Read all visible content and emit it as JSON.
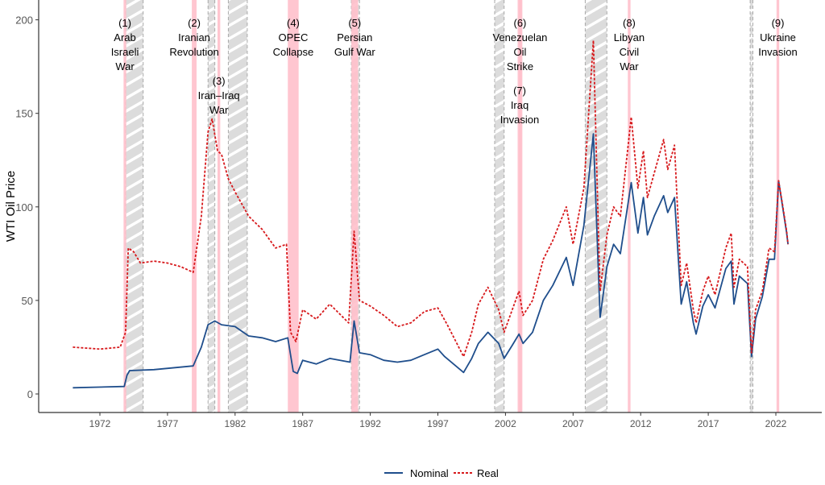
{
  "chart_data": {
    "type": "line",
    "title": "",
    "xlabel": "",
    "ylabel": "WTI Oil Price",
    "xlim": [
      1969.5,
      2025.5
    ],
    "ylim": [
      -10,
      210
    ],
    "x_ticks": [
      "1972",
      "1977",
      "1982",
      "1987",
      "1992",
      "1997",
      "2002",
      "2007",
      "2012",
      "2017",
      "2022"
    ],
    "y_ticks": [
      "0",
      "50",
      "100",
      "150",
      "200"
    ],
    "legend": {
      "placement": "bottom",
      "entries": [
        "Nominal",
        "Real"
      ]
    },
    "colors": {
      "nominal": "#1f4e8c",
      "real": "#d7191c",
      "event": "#ffc0cb",
      "recession": "#dcdcdc"
    },
    "recessions": [
      [
        1973.9,
        1975.2
      ],
      [
        1980.0,
        1980.5
      ],
      [
        1981.5,
        1982.9
      ],
      [
        1990.6,
        1991.2
      ],
      [
        2001.2,
        2001.9
      ],
      [
        2007.9,
        2009.5
      ],
      [
        2020.1,
        2020.3
      ]
    ],
    "events": [
      {
        "range": [
          1973.75,
          1973.95
        ],
        "num": "(1)",
        "label": [
          "Arab",
          "Israeli",
          "War"
        ],
        "row": 0
      },
      {
        "range": [
          1978.8,
          1979.15
        ],
        "num": "(2)",
        "label": [
          "Iranian",
          "Revolution"
        ],
        "row": 0
      },
      {
        "range": [
          1980.7,
          1980.9
        ],
        "num": "(3)",
        "label": [
          "Iran–Iraq",
          "War"
        ],
        "row": 1
      },
      {
        "range": [
          1985.9,
          1986.7
        ],
        "num": "(4)",
        "label": [
          "OPEC",
          "Collapse"
        ],
        "row": 0
      },
      {
        "range": [
          1990.6,
          1991.1
        ],
        "num": "(5)",
        "label": [
          "Persian",
          "Gulf War"
        ],
        "row": 0
      },
      {
        "range": [
          2002.9,
          2003.25
        ],
        "num": "(6)",
        "label": [
          "Venezuelan",
          "Oil",
          "Strike"
        ],
        "row": 0
      },
      {
        "range": [
          2003.0,
          2003.1
        ],
        "num": "(7)",
        "label": [
          "Iraq",
          "Invasion"
        ],
        "row": 2
      },
      {
        "range": [
          2011.05,
          2011.25
        ],
        "num": "(8)",
        "label": [
          "Libyan",
          "Civil",
          "War"
        ],
        "row": 0
      },
      {
        "range": [
          2022.05,
          2022.25
        ],
        "num": "(9)",
        "label": [
          "Ukraine",
          "Invasion"
        ],
        "row": 0
      }
    ],
    "series": [
      {
        "name": "Nominal",
        "points": [
          [
            1970,
            3.3
          ],
          [
            1973.8,
            4
          ],
          [
            1974.0,
            10
          ],
          [
            1974.2,
            12.5
          ],
          [
            1976,
            13
          ],
          [
            1978.9,
            15
          ],
          [
            1979.5,
            25
          ],
          [
            1980,
            37
          ],
          [
            1980.5,
            39
          ],
          [
            1981,
            37
          ],
          [
            1982,
            36
          ],
          [
            1983,
            31
          ],
          [
            1984,
            30
          ],
          [
            1985,
            28
          ],
          [
            1985.9,
            30
          ],
          [
            1986.3,
            12
          ],
          [
            1986.6,
            11
          ],
          [
            1987,
            18
          ],
          [
            1988,
            16
          ],
          [
            1989,
            19
          ],
          [
            1990.5,
            17
          ],
          [
            1990.8,
            39
          ],
          [
            1991.2,
            22
          ],
          [
            1992,
            21
          ],
          [
            1993,
            18
          ],
          [
            1994,
            17
          ],
          [
            1995,
            18
          ],
          [
            1996,
            21
          ],
          [
            1997,
            24
          ],
          [
            1997.5,
            20
          ],
          [
            1998.9,
            11.5
          ],
          [
            1999.5,
            19
          ],
          [
            2000,
            27
          ],
          [
            2000.7,
            33
          ],
          [
            2001.5,
            27
          ],
          [
            2001.9,
            19
          ],
          [
            2002.5,
            26
          ],
          [
            2003,
            32
          ],
          [
            2003.3,
            27
          ],
          [
            2004,
            33
          ],
          [
            2004.8,
            50
          ],
          [
            2005.5,
            58
          ],
          [
            2006.5,
            73
          ],
          [
            2007,
            58
          ],
          [
            2007.8,
            90
          ],
          [
            2008.5,
            139
          ],
          [
            2008.9,
            60
          ],
          [
            2009.0,
            41
          ],
          [
            2009.5,
            68
          ],
          [
            2010,
            80
          ],
          [
            2010.5,
            75
          ],
          [
            2011.3,
            113
          ],
          [
            2011.8,
            86
          ],
          [
            2012.2,
            105
          ],
          [
            2012.5,
            85
          ],
          [
            2013,
            95
          ],
          [
            2013.7,
            106
          ],
          [
            2014,
            97
          ],
          [
            2014.5,
            105
          ],
          [
            2015.0,
            48
          ],
          [
            2015.4,
            60
          ],
          [
            2015.9,
            38
          ],
          [
            2016.1,
            32
          ],
          [
            2016.6,
            47
          ],
          [
            2017,
            53
          ],
          [
            2017.5,
            46
          ],
          [
            2018.3,
            67
          ],
          [
            2018.7,
            71
          ],
          [
            2018.9,
            48
          ],
          [
            2019.3,
            63
          ],
          [
            2019.9,
            59
          ],
          [
            2020.2,
            20
          ],
          [
            2020.5,
            40
          ],
          [
            2021,
            52
          ],
          [
            2021.5,
            72
          ],
          [
            2021.9,
            72
          ],
          [
            2022.2,
            114
          ],
          [
            2022.5,
            100
          ],
          [
            2022.8,
            86
          ],
          [
            2022.9,
            80
          ]
        ]
      },
      {
        "name": "Real",
        "points": [
          [
            1970,
            25
          ],
          [
            1972,
            24
          ],
          [
            1973.5,
            25
          ],
          [
            1973.9,
            33
          ],
          [
            1974.1,
            78
          ],
          [
            1974.5,
            76
          ],
          [
            1975,
            70
          ],
          [
            1976,
            71
          ],
          [
            1977,
            70
          ],
          [
            1978,
            68
          ],
          [
            1978.9,
            65
          ],
          [
            1979.5,
            95
          ],
          [
            1980,
            140
          ],
          [
            1980.3,
            147
          ],
          [
            1980.7,
            130
          ],
          [
            1981,
            128
          ],
          [
            1981.5,
            115
          ],
          [
            1982,
            108
          ],
          [
            1983,
            95
          ],
          [
            1984,
            88
          ],
          [
            1985,
            78
          ],
          [
            1985.8,
            80
          ],
          [
            1986.1,
            33
          ],
          [
            1986.5,
            28
          ],
          [
            1987,
            45
          ],
          [
            1988,
            40
          ],
          [
            1989,
            48
          ],
          [
            1990.4,
            38
          ],
          [
            1990.8,
            87
          ],
          [
            1991.2,
            50
          ],
          [
            1992,
            47
          ],
          [
            1993,
            42
          ],
          [
            1994,
            36
          ],
          [
            1995,
            38
          ],
          [
            1996,
            44
          ],
          [
            1997,
            46
          ],
          [
            1997.7,
            37
          ],
          [
            1998.9,
            20
          ],
          [
            1999.5,
            33
          ],
          [
            2000,
            48
          ],
          [
            2000.7,
            57
          ],
          [
            2001.5,
            45
          ],
          [
            2001.9,
            33
          ],
          [
            2002.5,
            45
          ],
          [
            2003,
            55
          ],
          [
            2003.3,
            42
          ],
          [
            2004,
            50
          ],
          [
            2004.8,
            72
          ],
          [
            2005.5,
            82
          ],
          [
            2006.5,
            100
          ],
          [
            2007,
            80
          ],
          [
            2007.8,
            110
          ],
          [
            2008.5,
            189
          ],
          [
            2008.9,
            80
          ],
          [
            2009.0,
            55
          ],
          [
            2009.5,
            85
          ],
          [
            2010,
            100
          ],
          [
            2010.5,
            95
          ],
          [
            2011.3,
            148
          ],
          [
            2011.8,
            110
          ],
          [
            2012.2,
            130
          ],
          [
            2012.5,
            105
          ],
          [
            2013,
            118
          ],
          [
            2013.7,
            136
          ],
          [
            2014,
            120
          ],
          [
            2014.5,
            133
          ],
          [
            2015.0,
            58
          ],
          [
            2015.4,
            70
          ],
          [
            2015.9,
            45
          ],
          [
            2016.1,
            38
          ],
          [
            2016.6,
            55
          ],
          [
            2017,
            63
          ],
          [
            2017.5,
            53
          ],
          [
            2018.3,
            78
          ],
          [
            2018.7,
            86
          ],
          [
            2018.9,
            57
          ],
          [
            2019.3,
            72
          ],
          [
            2019.9,
            68
          ],
          [
            2020.2,
            22
          ],
          [
            2020.5,
            45
          ],
          [
            2021,
            55
          ],
          [
            2021.5,
            78
          ],
          [
            2021.9,
            76
          ],
          [
            2022.2,
            114
          ],
          [
            2022.5,
            101
          ],
          [
            2022.8,
            87
          ],
          [
            2022.9,
            80
          ]
        ]
      }
    ]
  }
}
